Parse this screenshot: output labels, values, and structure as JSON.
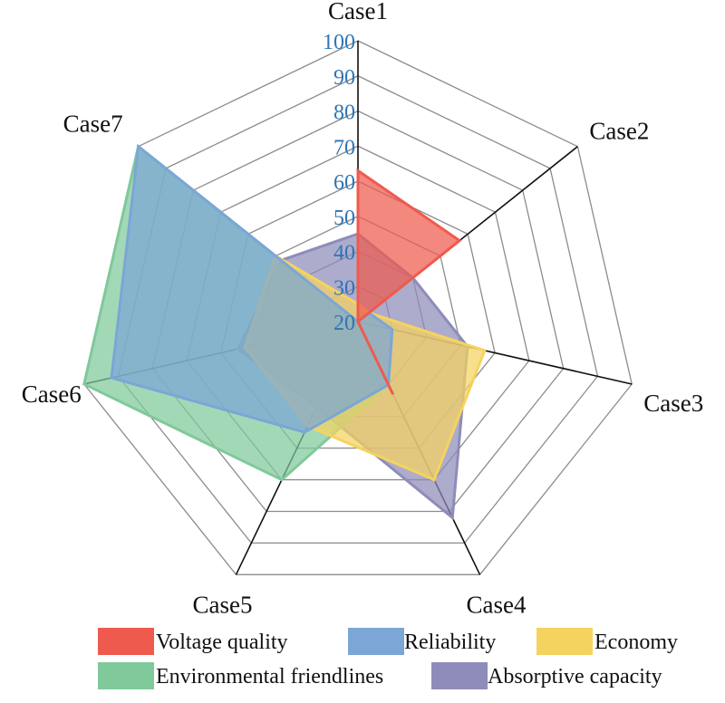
{
  "chart_data": {
    "type": "radar",
    "title": "",
    "categories": [
      "Case1",
      "Case2",
      "Case3",
      "Case4",
      "Case5",
      "Case6",
      "Case7"
    ],
    "r_range": [
      20,
      100
    ],
    "ticks": [
      20,
      30,
      40,
      50,
      60,
      70,
      80,
      90,
      100
    ],
    "tick_labels": [
      "20",
      "30",
      "40",
      "50",
      "60",
      "70",
      "80",
      "90",
      "100"
    ],
    "legend_position": "bottom",
    "series": [
      {
        "name": "Absorptive capacity",
        "color": "#8e8cb8",
        "values": [
          45,
          40,
          52,
          82,
          47,
          55,
          48
        ]
      },
      {
        "name": "Environmental friendlines",
        "color": "#7fc99a",
        "values": [
          20,
          20,
          20,
          40,
          70,
          100,
          100
        ]
      },
      {
        "name": "Economy",
        "color": "#f5d35f",
        "values": [
          25,
          24,
          57,
          70,
          53,
          53,
          50
        ]
      },
      {
        "name": "Reliability",
        "color": "#7ba6d6",
        "values": [
          20,
          24,
          30,
          40,
          55,
          92,
          100
        ]
      },
      {
        "name": "Voltage quality",
        "color": "#ef5a4e",
        "values": [
          63,
          57,
          20,
          43,
          20,
          20,
          20
        ]
      }
    ],
    "legend": [
      {
        "label": "Voltage quality",
        "color": "#ef5a4e"
      },
      {
        "label": "Reliability",
        "color": "#7ba6d6"
      },
      {
        "label": "Economy",
        "color": "#f5d35f"
      },
      {
        "label": "Environmental friendlines",
        "color": "#7fc99a"
      },
      {
        "label": "Absorptive capacity",
        "color": "#8e8cb8"
      }
    ]
  }
}
